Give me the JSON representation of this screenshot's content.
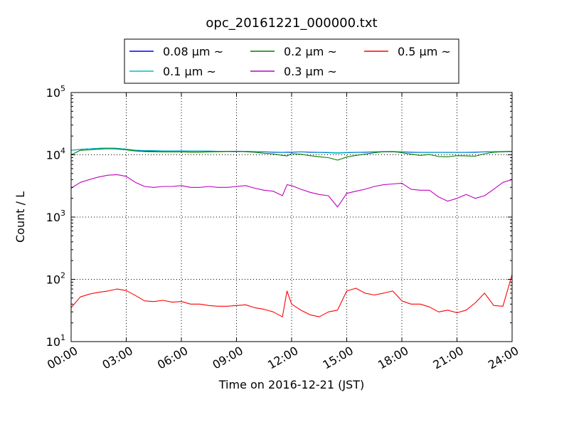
{
  "chart_data": {
    "type": "line",
    "title": "opc_20161221_000000.txt",
    "xlabel": "Time on 2016-12-21 (JST)",
    "ylabel": "Count / L",
    "yscale": "log",
    "ylim": [
      10,
      100000
    ],
    "xlim": [
      "00:00",
      "24:00"
    ],
    "grid": true,
    "legend_position": "top",
    "x_ticks": [
      "00:00",
      "03:00",
      "06:00",
      "09:00",
      "12:00",
      "15:00",
      "18:00",
      "21:00",
      "24:00"
    ],
    "y_ticks": [
      {
        "base": "10",
        "exp": "1"
      },
      {
        "base": "10",
        "exp": "2"
      },
      {
        "base": "10",
        "exp": "3"
      },
      {
        "base": "10",
        "exp": "4"
      },
      {
        "base": "10",
        "exp": "5"
      }
    ],
    "x": [
      "00:00",
      "00:30",
      "01:00",
      "01:30",
      "02:00",
      "02:30",
      "03:00",
      "03:30",
      "04:00",
      "04:30",
      "05:00",
      "05:30",
      "06:00",
      "06:30",
      "07:00",
      "07:30",
      "08:00",
      "08:30",
      "09:00",
      "09:30",
      "10:00",
      "10:30",
      "11:00",
      "11:30",
      "11:45",
      "12:00",
      "12:30",
      "13:00",
      "13:30",
      "14:00",
      "14:30",
      "15:00",
      "15:30",
      "16:00",
      "16:30",
      "17:00",
      "17:30",
      "18:00",
      "18:30",
      "19:00",
      "19:30",
      "20:00",
      "20:30",
      "21:00",
      "21:30",
      "22:00",
      "22:30",
      "23:00",
      "23:30",
      "24:00"
    ],
    "series": [
      {
        "name": "0.08 μm ~",
        "color": "#0000ff",
        "values": [
          11800,
          12200,
          12500,
          12700,
          12800,
          12700,
          12300,
          11800,
          11600,
          11600,
          11500,
          11500,
          11500,
          11400,
          11400,
          11400,
          11300,
          11300,
          11300,
          11300,
          11200,
          11100,
          11000,
          10900,
          11000,
          11000,
          11100,
          11000,
          10900,
          10800,
          10700,
          10800,
          10900,
          11000,
          11100,
          11200,
          11200,
          11100,
          11000,
          10900,
          10900,
          10900,
          10900,
          10900,
          10900,
          11000,
          11100,
          11200,
          11200,
          11300
        ]
      },
      {
        "name": "0.1 μm ~",
        "color": "#00bfbf",
        "values": [
          11800,
          12200,
          12500,
          12700,
          12800,
          12700,
          12300,
          11900,
          11700,
          11700,
          11600,
          11600,
          11600,
          11500,
          11500,
          11500,
          11400,
          11400,
          11400,
          11400,
          11300,
          11200,
          11100,
          11000,
          11100,
          11100,
          11200,
          11100,
          11000,
          10900,
          10800,
          10900,
          11000,
          11100,
          11200,
          11300,
          11300,
          11200,
          11100,
          11000,
          11000,
          11000,
          11000,
          11000,
          11000,
          11100,
          11200,
          11300,
          11300,
          11400
        ]
      },
      {
        "name": "0.2 μm ~",
        "color": "#007f00",
        "values": [
          10000,
          11800,
          12000,
          12300,
          12500,
          12400,
          12000,
          11500,
          11300,
          11200,
          11100,
          11100,
          11100,
          11000,
          11000,
          11100,
          11200,
          11300,
          11400,
          11200,
          11000,
          10600,
          10300,
          9800,
          9600,
          10400,
          10200,
          9700,
          9300,
          9000,
          8200,
          9200,
          9800,
          10200,
          10800,
          11200,
          11300,
          10800,
          10200,
          9800,
          10100,
          9400,
          9300,
          9700,
          9600,
          9500,
          10400,
          11000,
          11200,
          11400
        ]
      },
      {
        "name": "0.3 μm ~",
        "color": "#bf00bf",
        "values": [
          2900,
          3600,
          4000,
          4400,
          4700,
          4800,
          4500,
          3600,
          3100,
          3000,
          3100,
          3100,
          3200,
          3000,
          3000,
          3100,
          3000,
          3000,
          3100,
          3200,
          2900,
          2700,
          2600,
          2200,
          3300,
          3200,
          2800,
          2500,
          2300,
          2200,
          1450,
          2400,
          2600,
          2800,
          3100,
          3300,
          3400,
          3500,
          2800,
          2700,
          2700,
          2100,
          1800,
          2000,
          2300,
          2000,
          2200,
          2800,
          3600,
          4000
        ]
      },
      {
        "name": "0.5 μm ~",
        "color": "#ff0000",
        "values": [
          35,
          52,
          58,
          62,
          65,
          70,
          66,
          55,
          45,
          44,
          46,
          43,
          44,
          40,
          40,
          38,
          37,
          37,
          38,
          39,
          35,
          33,
          30,
          25,
          65,
          40,
          32,
          27,
          25,
          30,
          32,
          65,
          72,
          60,
          56,
          60,
          65,
          45,
          40,
          40,
          36,
          30,
          32,
          29,
          32,
          42,
          60,
          38,
          37,
          120
        ]
      }
    ]
  }
}
